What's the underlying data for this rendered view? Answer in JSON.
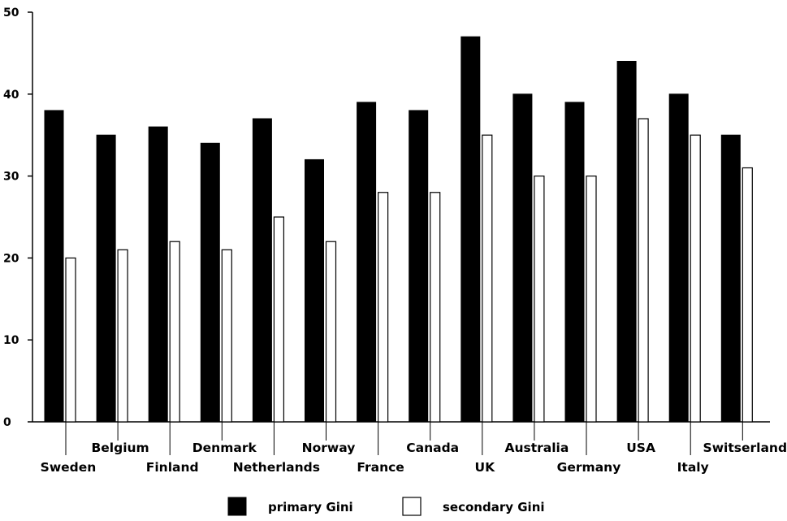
{
  "chart_data": {
    "type": "bar",
    "categories": [
      "Sweden",
      "Belgium",
      "Finland",
      "Denmark",
      "Netherlands",
      "Norway",
      "France",
      "Canada",
      "UK",
      "Australia",
      "Germany",
      "USA",
      "Italy",
      "Switserland"
    ],
    "series": [
      {
        "name": "primary Gini",
        "values": [
          38,
          35,
          36,
          34,
          37,
          32,
          39,
          38,
          47,
          40,
          39,
          44,
          40,
          35
        ],
        "color": "#000000"
      },
      {
        "name": "secondary Gini",
        "values": [
          20,
          21,
          22,
          21,
          25,
          22,
          28,
          28,
          35,
          30,
          30,
          37,
          35,
          31
        ],
        "color": "#ffffff"
      }
    ],
    "ylim": [
      0,
      50
    ],
    "yticks": [
      "0",
      "10",
      "20",
      "30",
      "40",
      "50"
    ],
    "grid": false,
    "legend_placement": "bottom-center",
    "title": "",
    "xlabel": "",
    "ylabel": ""
  }
}
